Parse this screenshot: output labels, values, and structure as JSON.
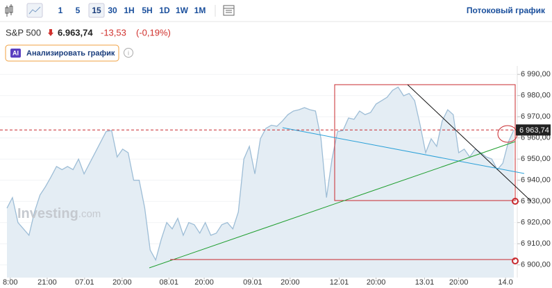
{
  "toolbar": {
    "intervals": [
      "1",
      "5",
      "15",
      "30",
      "1H",
      "5H",
      "1D",
      "1W",
      "1M"
    ],
    "active": "15",
    "stream": "Потоковый график"
  },
  "header": {
    "symbol": "S&P 500",
    "price": "6.963,74",
    "change": "-13,53",
    "change_pct": "(-0,19%)",
    "analyze": "Анализировать график",
    "ai": "AI"
  },
  "watermark": {
    "brand": "Investing",
    "suffix": ".com"
  },
  "chart_data": {
    "type": "area",
    "color": "#9dbdd6",
    "fill_color": "#e4edf4",
    "grid": true,
    "x": [
      0,
      1,
      2,
      3,
      4,
      5,
      6,
      7,
      8,
      9,
      10,
      11,
      12,
      13,
      14,
      15,
      16,
      17,
      18,
      19,
      20,
      21,
      22,
      23,
      24,
      25,
      26,
      27,
      28,
      29,
      30,
      31,
      32,
      33,
      34,
      35,
      36,
      37,
      38,
      39,
      40,
      41,
      42,
      43,
      44,
      45,
      46,
      47,
      48,
      49,
      50,
      51,
      52,
      53,
      54,
      55,
      56,
      57,
      58,
      59,
      60,
      61,
      62,
      63,
      64,
      65,
      66,
      67,
      68,
      69,
      70,
      71,
      72,
      73,
      74,
      75,
      76,
      77,
      78,
      79,
      80,
      81,
      82,
      83,
      84,
      85,
      86,
      87,
      88,
      89,
      90,
      91,
      92
    ],
    "values": [
      6926.8,
      6931.8,
      6920,
      6917,
      6914,
      6925,
      6933,
      6937,
      6941.6,
      6946.5,
      6945,
      6946.5,
      6945,
      6950,
      6943,
      6948,
      6953,
      6958,
      6963,
      6963.5,
      6951,
      6954.7,
      6953,
      6940,
      6940,
      6927,
      6907,
      6902.3,
      6912,
      6920,
      6917,
      6922,
      6914,
      6920,
      6919,
      6915,
      6920,
      6914,
      6915,
      6919,
      6920,
      6917,
      6925,
      6950,
      6956,
      6943,
      6959.6,
      6964.5,
      6966,
      6965.5,
      6968,
      6971,
      6972.7,
      6973.3,
      6974.3,
      6973.3,
      6972.7,
      6959.6,
      6931.8,
      6950,
      6963,
      6963.5,
      6969.4,
      6968.8,
      6972.7,
      6971,
      6972,
      6976,
      6977.6,
      6979.2,
      6982.5,
      6984,
      6979.9,
      6981,
      6977.6,
      6966,
      6953,
      6959.6,
      6956,
      6968,
      6973.3,
      6971,
      6953,
      6954.7,
      6951,
      6954.7,
      6953,
      6951,
      6950,
      6945,
      6948,
      6958,
      6963.74
    ],
    "xlim": [
      -0.3,
      92.7
    ],
    "xticks": [
      {
        "value": 0.6,
        "label": "8:00"
      },
      {
        "value": 7.3,
        "label": "21:00"
      },
      {
        "value": 14.1,
        "label": "07.01"
      },
      {
        "value": 20.9,
        "label": "20:00"
      },
      {
        "value": 29.4,
        "label": "08.01"
      },
      {
        "value": 35.8,
        "label": "20:00"
      },
      {
        "value": 44.6,
        "label": "09.01"
      },
      {
        "value": 51.4,
        "label": "20:00"
      },
      {
        "value": 60.3,
        "label": "12.01"
      },
      {
        "value": 67,
        "label": "20:00"
      },
      {
        "value": 75.8,
        "label": "13.01"
      },
      {
        "value": 82,
        "label": "20:00"
      },
      {
        "value": 90.5,
        "label": "14.0"
      }
    ],
    "ylim": [
      6894,
      6994
    ],
    "yticks": [
      {
        "value": 6900,
        "label": "6 900,00"
      },
      {
        "value": 6910,
        "label": "6 910,00"
      },
      {
        "value": 6920,
        "label": "6 920,00"
      },
      {
        "value": 6930,
        "label": "6 930,00"
      },
      {
        "value": 6940,
        "label": "6 940,00"
      },
      {
        "value": 6950,
        "label": "6 950,00"
      },
      {
        "value": 6960,
        "label": "6 960,00"
      },
      {
        "value": 6970,
        "label": "6 970,00"
      },
      {
        "value": 6980,
        "label": "6 980,00"
      },
      {
        "value": 6990,
        "label": "6 990,00"
      }
    ],
    "last_price": {
      "value": 6963.74,
      "label": "6 963,74"
    }
  }
}
